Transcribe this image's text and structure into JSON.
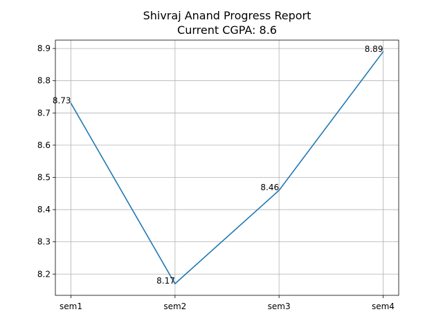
{
  "chart_data": {
    "type": "line",
    "title": "Shivraj Anand Progress Report",
    "subtitle": "Current CGPA: 8.6",
    "categories": [
      "sem1",
      "sem2",
      "sem3",
      "sem4"
    ],
    "series": [
      {
        "values": [
          8.73,
          8.17,
          8.46,
          8.89
        ],
        "color": "#1f77b4"
      }
    ],
    "data_labels": [
      "8.73",
      "8.17",
      "8.46",
      "8.89"
    ],
    "yticks": [
      8.2,
      8.3,
      8.4,
      8.5,
      8.6,
      8.7,
      8.8,
      8.9
    ],
    "ytick_labels": [
      "8.2",
      "8.3",
      "8.4",
      "8.5",
      "8.6",
      "8.7",
      "8.8",
      "8.9"
    ],
    "ylim": [
      8.134,
      8.926
    ],
    "grid": true
  }
}
